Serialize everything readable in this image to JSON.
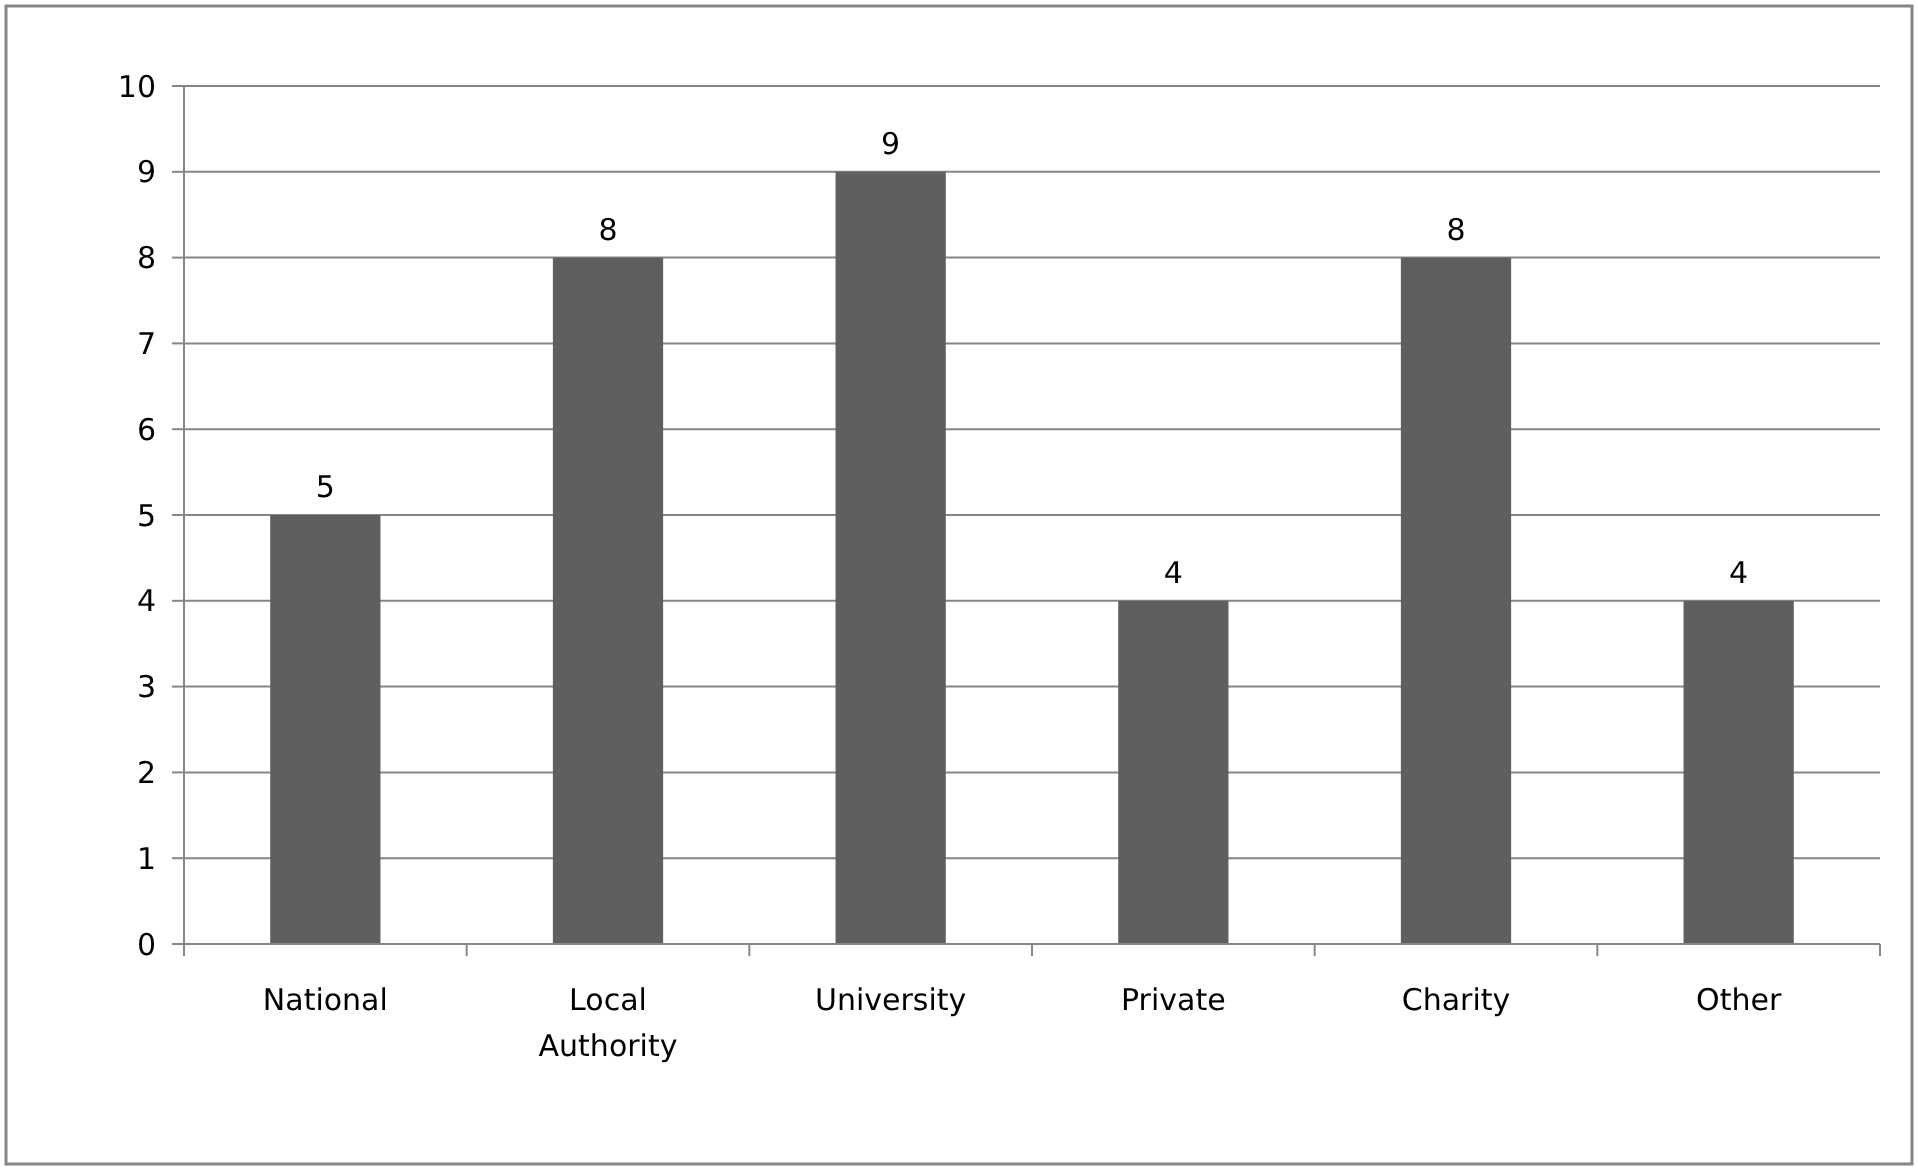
{
  "chart_data": {
    "type": "bar",
    "categories": [
      "National",
      "Local Authority",
      "University",
      "Private",
      "Charity",
      "Other"
    ],
    "values": [
      5,
      8,
      9,
      4,
      8,
      4
    ],
    "color": "#5f5f5f",
    "ylim": [
      0,
      10
    ],
    "yticks": [
      0,
      1,
      2,
      3,
      4,
      5,
      6,
      7,
      8,
      9,
      10
    ],
    "grid": "y",
    "data_labels": true
  }
}
